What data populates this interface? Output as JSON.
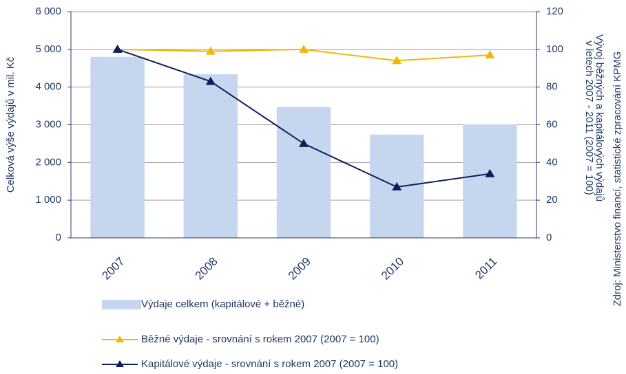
{
  "chart_data": {
    "type": "bar_line",
    "categories": [
      "2007",
      "2008",
      "2009",
      "2010",
      "2011"
    ],
    "series": [
      {
        "name": "Výdaje celkem (kapitálové + běžné)",
        "color": "#c6d6ef",
        "type": "bar",
        "values": [
          4800,
          4340,
          3470,
          2740,
          3010
        ]
      },
      {
        "name": "Běžné výdaje - srovnání  s rokem 2007 (2007 = 100)",
        "color": "#f2b705",
        "type": "line",
        "axis": "y2",
        "values": [
          100,
          99,
          100,
          94,
          97
        ]
      },
      {
        "name": "Kapitálové výdaje - srovnání  s rokem 2007 (2007 =  100)",
        "color": "#0c1e5b",
        "type": "line",
        "axis": "y2",
        "values": [
          100,
          83,
          50,
          27,
          34
        ]
      }
    ],
    "ylabel": "Celková výše výdajů v mil. Kč",
    "y2label": [
      "Vývoj běžných a kapitálových výdajů",
      "v letech 2007 - 2011  (2007 = 100)"
    ],
    "source": "Zdroj: Ministerstvo financí, statistické zpracování KPMG",
    "ylim": [
      0,
      6000
    ],
    "yticks": [
      0,
      {
        "value": 1000,
        "label": "1 000"
      },
      {
        "value": 2000,
        "label": "2 000"
      },
      {
        "value": 3000,
        "label": "3 000"
      },
      {
        "value": 4000,
        "label": "4 000"
      },
      {
        "value": 5000,
        "label": "5 000"
      },
      {
        "value": 6000,
        "label": "6 000"
      }
    ],
    "y2lim": [
      0,
      120
    ],
    "y2ticks": [
      0,
      20,
      40,
      60,
      80,
      100,
      120
    ],
    "grid": true
  }
}
